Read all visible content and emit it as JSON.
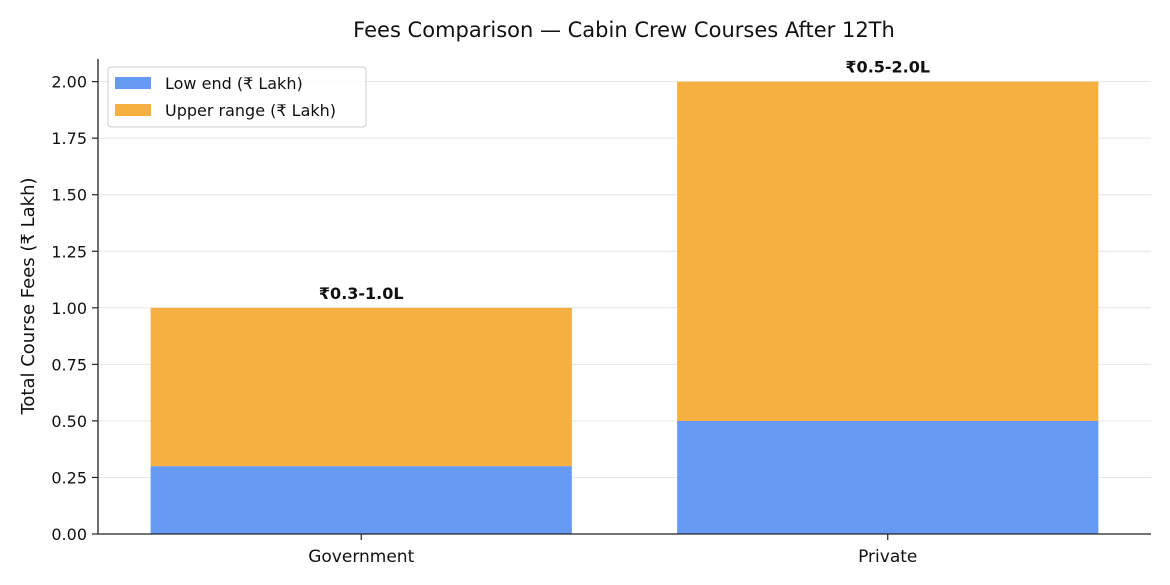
{
  "chart_data": {
    "type": "bar",
    "stacked": true,
    "title": "Fees Comparison — Cabin Crew Courses After 12Th",
    "xlabel": "",
    "ylabel": "Total Course Fees (₹ Lakh)",
    "categories": [
      "Government",
      "Private"
    ],
    "series": [
      {
        "name": "Low end (₹ Lakh)",
        "values": [
          0.3,
          0.5
        ],
        "color": "#6699f2"
      },
      {
        "name": "Upper range (₹ Lakh)",
        "values": [
          0.7,
          1.5
        ],
        "color": "#f5b041"
      }
    ],
    "totals": [
      1.0,
      2.0
    ],
    "data_labels": [
      "₹0.3-1.0L",
      "₹0.5-2.0L"
    ],
    "ylim": [
      0,
      2.1
    ],
    "yticks": [
      "0.00",
      "0.25",
      "0.50",
      "0.75",
      "1.00",
      "1.25",
      "1.50",
      "1.75",
      "2.00"
    ],
    "grid": "horizontal",
    "legend_position": "top-left"
  }
}
